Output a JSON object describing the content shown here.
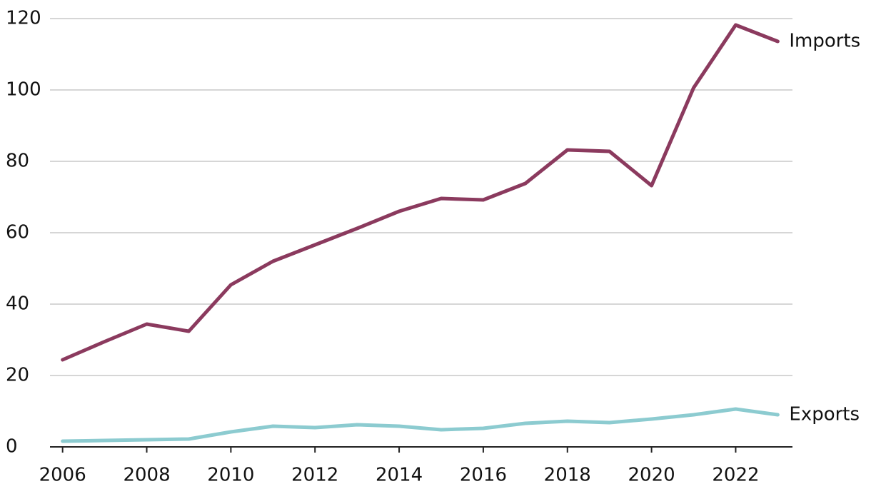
{
  "chart_data": {
    "type": "line",
    "x": [
      2006,
      2007,
      2008,
      2009,
      2010,
      2011,
      2012,
      2013,
      2014,
      2015,
      2016,
      2017,
      2018,
      2019,
      2020,
      2021,
      2022,
      2023
    ],
    "series": [
      {
        "name": "Imports",
        "color": "#8b3a5e",
        "values": [
          24.4,
          29.5,
          34.4,
          32.4,
          45.4,
          52,
          56.6,
          61.2,
          66,
          69.6,
          69.2,
          73.8,
          83.2,
          82.8,
          73.2,
          100.6,
          118.2,
          113.6
        ]
      },
      {
        "name": "Exports",
        "color": "#8ccbd0",
        "values": [
          1.6,
          1.8,
          2.0,
          2.2,
          4.2,
          5.8,
          5.4,
          6.2,
          5.8,
          4.8,
          5.2,
          6.6,
          7.2,
          6.8,
          7.8,
          9,
          10.6,
          9
        ]
      }
    ],
    "xlim": [
      2005.7,
      2023.35
    ],
    "xticks": [
      2006,
      2008,
      2010,
      2012,
      2014,
      2016,
      2018,
      2020,
      2022
    ],
    "ylim": [
      0,
      120
    ],
    "yticks": [
      0,
      20,
      40,
      60,
      80,
      100,
      120
    ],
    "grid": true
  }
}
